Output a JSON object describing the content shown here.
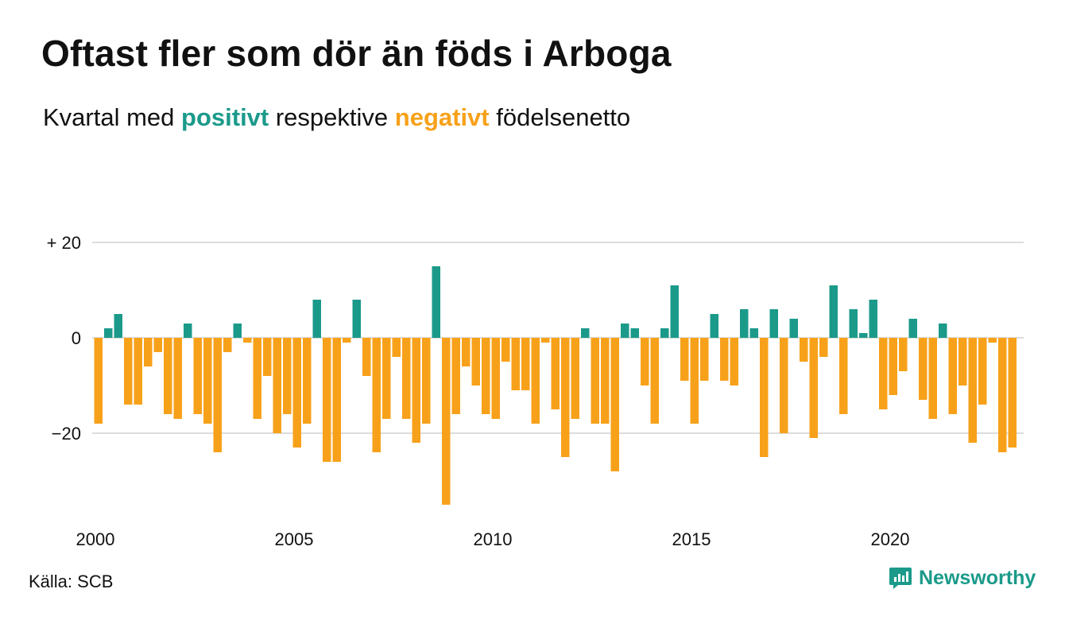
{
  "title": "Oftast fler som dör än föds i Arboga",
  "subtitle": {
    "prefix": "Kvartal med ",
    "positive": "positivt",
    "middle": " respektive ",
    "negative": "negativt",
    "suffix": " födelsenetto"
  },
  "source": "Källa: SCB",
  "brand": {
    "name": "Newsworthy",
    "icon": "newsworthy-logo-icon"
  },
  "colors": {
    "positive": "#1b9a8a",
    "negative": "#f7a11a",
    "grid": "#dddddd",
    "text": "#111111"
  },
  "chart_data": {
    "type": "bar",
    "title": "Oftast fler som dör än föds i Arboga",
    "subtitle": "Kvartal med positivt respektive negativt födelsenetto",
    "start": "2000 Q1",
    "period": "quarter",
    "x_ticks": [
      "2000",
      "2005",
      "2010",
      "2015",
      "2020"
    ],
    "y_ticks": [
      {
        "value": 20,
        "label": "+ 20"
      },
      {
        "value": 0,
        "label": "0"
      },
      {
        "value": -20,
        "label": "−20"
      }
    ],
    "ylim": [
      -36,
      20
    ],
    "grid": true,
    "values": [
      -18,
      2,
      5,
      -14,
      -14,
      -6,
      -3,
      -16,
      -17,
      3,
      -16,
      -18,
      -24,
      -3,
      3,
      -1,
      -17,
      -8,
      -20,
      -16,
      -23,
      -18,
      8,
      -26,
      -26,
      -1,
      8,
      -8,
      -24,
      -17,
      -4,
      -17,
      -22,
      -18,
      15,
      -35,
      -16,
      -6,
      -10,
      -16,
      -17,
      -5,
      -11,
      -11,
      -18,
      -1,
      -15,
      -25,
      -17,
      2,
      -18,
      -18,
      -28,
      3,
      2,
      -10,
      -18,
      2,
      11,
      -9,
      -18,
      -9,
      5,
      -9,
      -10,
      6,
      2,
      -25,
      6,
      -20,
      4,
      -5,
      -21,
      -4,
      11,
      -16,
      6,
      1,
      8,
      -15,
      -12,
      -7,
      4,
      -13,
      -17,
      3,
      -16,
      -10,
      -22,
      -14,
      -1,
      -24,
      -23
    ]
  }
}
